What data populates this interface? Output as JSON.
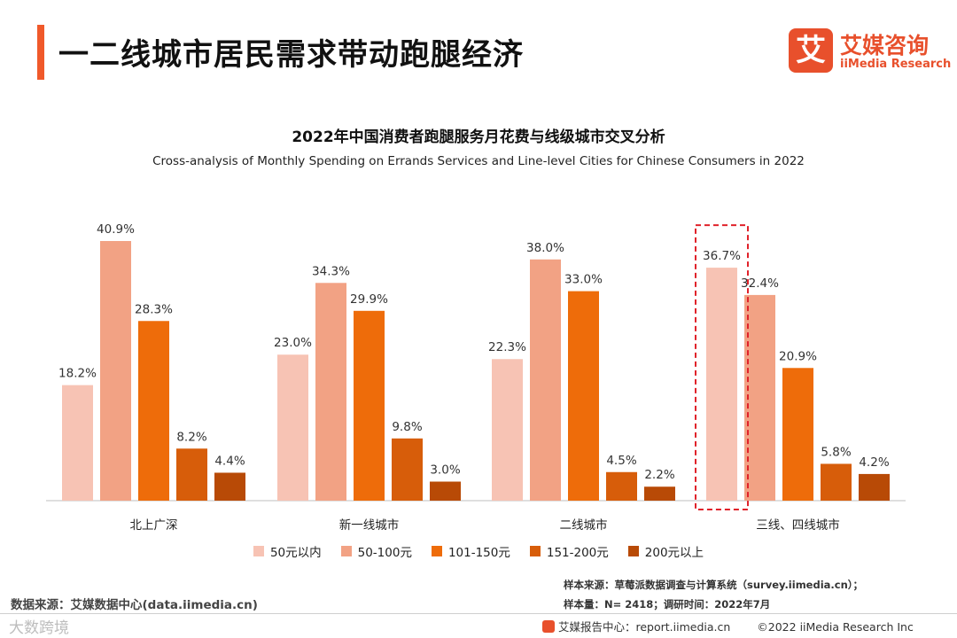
{
  "header": {
    "title": "一二线城市居民需求带动跑腿经济",
    "logo_icon": "艾",
    "logo_cn": "艾媒咨询",
    "logo_en": "iiMedia Research"
  },
  "chart_data": {
    "type": "bar",
    "title": "2022年中国消费者跑腿服务月花费与线级城市交叉分析",
    "subtitle": "Cross-analysis of Monthly Spending on Errands Services and Line-level Cities for Chinese Consumers in 2022",
    "categories": [
      "北上广深",
      "新一线城市",
      "二线城市",
      "三线、四线城市"
    ],
    "series": [
      {
        "name": "50元以内",
        "color": "#f7c3b4",
        "values": [
          18.2,
          23.0,
          22.3,
          36.7
        ]
      },
      {
        "name": "50-100元",
        "color": "#f2a284",
        "values": [
          40.9,
          34.3,
          38.0,
          32.4
        ]
      },
      {
        "name": "101-150元",
        "color": "#ee6c0a",
        "values": [
          28.3,
          29.9,
          33.0,
          20.9
        ]
      },
      {
        "name": "151-200元",
        "color": "#d75d0a",
        "values": [
          8.2,
          9.8,
          4.5,
          5.8
        ]
      },
      {
        "name": "200元以上",
        "color": "#b84a06",
        "values": [
          4.4,
          3.0,
          2.2,
          4.2
        ]
      }
    ],
    "value_format": "%",
    "ylim": [
      0,
      45
    ],
    "grid": false,
    "legend_position": "bottom",
    "highlight": {
      "category_index": 3,
      "series_index": 0,
      "style": "red-dashed-box"
    }
  },
  "source_left": "数据来源：艾媒数据中心(data.iimedia.cn)",
  "notes": {
    "sample_source": "样本来源：草莓派数据调查与计算系统（survey.iimedia.cn）；",
    "sample_size": "样本量：N= 2418；调研时间：2022年7月"
  },
  "footer": {
    "report_center": "艾媒报告中心：report.iimedia.cn",
    "copyright": "©2022  iiMedia Research  Inc"
  },
  "watermark": "大数跨境"
}
